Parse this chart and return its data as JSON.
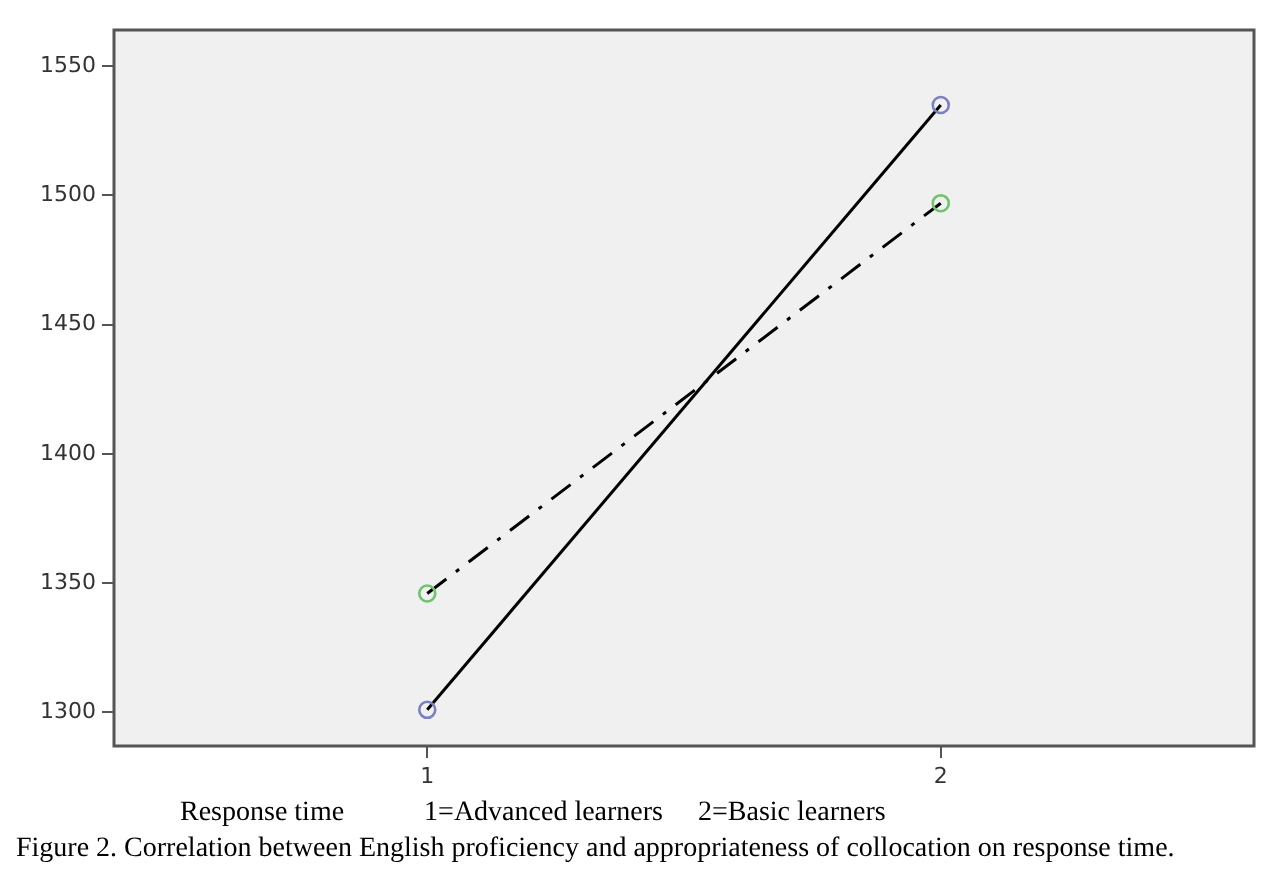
{
  "chart_data": {
    "type": "line",
    "xlabel": "Response time",
    "x": [
      1,
      2
    ],
    "series": [
      {
        "color": "#000000",
        "colors": [
          "#7b7fc4",
          "#7b7fc4"
        ],
        "values": [
          1301,
          1535
        ],
        "line_style": "solid"
      },
      {
        "color": "#000000",
        "colors": [
          "#6cc46c",
          "#6cc46c"
        ],
        "values": [
          1346,
          1497
        ],
        "line_style": "dashed"
      }
    ],
    "xlim": [
      0.39,
      2.61
    ],
    "xticks": [
      1,
      2
    ],
    "ylim": [
      1287,
      1564
    ],
    "yticks": [
      1300,
      1350,
      1400,
      1450,
      1500,
      1550
    ],
    "grid": false,
    "legend": false,
    "marker": "circle",
    "annotations": [
      "1=Advanced learners     2=Basic learners",
      "Figure 2. Correlation between English proficiency and appropriateness of collocation on response time."
    ]
  }
}
